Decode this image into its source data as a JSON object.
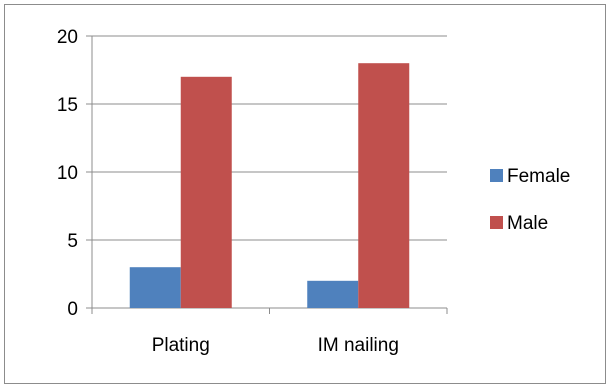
{
  "chart_data": {
    "type": "bar",
    "categories": [
      "Plating",
      "IM nailing"
    ],
    "series": [
      {
        "name": "Female",
        "values": [
          3,
          2
        ],
        "color": "#4f81bd"
      },
      {
        "name": "Male",
        "values": [
          17,
          18
        ],
        "color": "#c0504d"
      }
    ],
    "ylim": [
      0,
      20
    ],
    "yticks": [
      0,
      5,
      10,
      15,
      20
    ],
    "grid": true,
    "legend": "right",
    "title": "",
    "xlabel": "",
    "ylabel": ""
  }
}
